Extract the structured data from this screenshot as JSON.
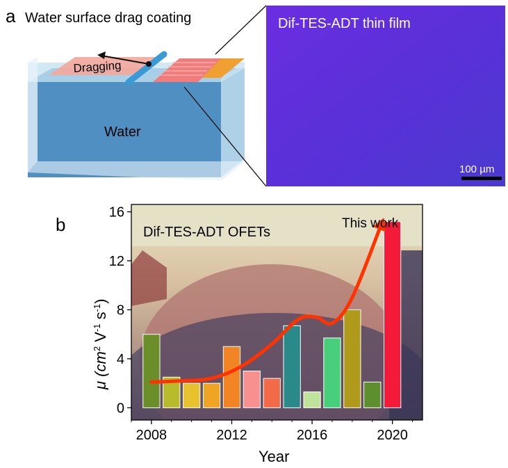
{
  "panel_a": {
    "letter": "a",
    "title": "Water surface drag coating",
    "drag_label": "Dragging",
    "water_label": "Water",
    "micrograph_label": "Dif-TES-ADT thin film",
    "scale_bar_label": "100 µm"
  },
  "panel_b": {
    "letter": "b"
  },
  "colors": {
    "micrograph": "#5a2bd6",
    "water": "#4f8fc2",
    "film": "#f08080",
    "film_edge": "#f0a030",
    "rod": "#3a9ad6",
    "trend_arrow": "#ff3300"
  },
  "chart_data": {
    "type": "bar",
    "title": "Dif-TES-ADT OFETs",
    "annotation": "This work",
    "xlabel": "Year",
    "ylabel_main": "μ (cm",
    "ylabel_sup1": "2",
    "ylabel_mid": " V",
    "ylabel_sup2": "-1",
    "ylabel_mid2": " s",
    "ylabel_sup3": "-1",
    "ylabel_end": ")",
    "xlim": [
      2007,
      2021.5
    ],
    "ylim": [
      -1,
      16.6
    ],
    "xticks": [
      2008,
      2012,
      2016,
      2020
    ],
    "yticks": [
      0,
      4,
      8,
      12,
      16
    ],
    "x": [
      2008,
      2009,
      2010,
      2011,
      2012,
      2013,
      2014,
      2015,
      2016,
      2017,
      2018,
      2019,
      2020
    ],
    "values": [
      6.0,
      2.5,
      2.0,
      2.0,
      5.0,
      3.0,
      2.4,
      6.7,
      1.3,
      5.7,
      8.0,
      2.1,
      15.2
    ],
    "bar_colors": [
      "#6b8e2a",
      "#b8bb2c",
      "#e8c22e",
      "#f0a424",
      "#f28424",
      "#f99090",
      "#f26a48",
      "#2a8a8a",
      "#bfe39a",
      "#48cf7c",
      "#b09a1c",
      "#5e8f2e",
      "#f41a3a"
    ],
    "trend": {
      "x": [
        2008,
        2009.5,
        2011,
        2012.5,
        2014,
        2015.3,
        2016.2,
        2017,
        2018,
        2019.5
      ],
      "y": [
        2.1,
        2.2,
        2.4,
        3.4,
        5.2,
        7.2,
        7.4,
        6.9,
        9.0,
        15.2
      ]
    },
    "grid": false
  }
}
